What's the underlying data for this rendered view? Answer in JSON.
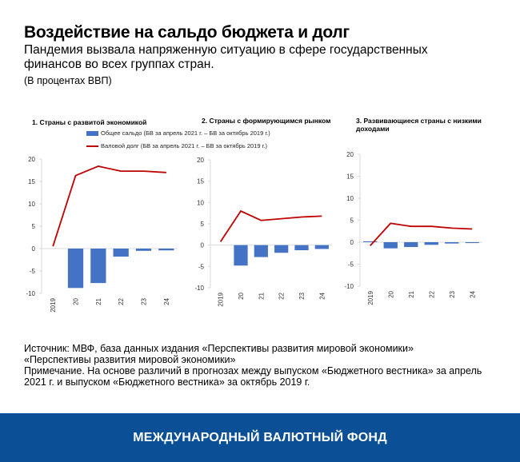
{
  "header": {
    "title": "Воздействие на сальдо бюджета и долг",
    "subtitle": "Пандемия вызвала напряженную ситуацию в сфере государственных финансов во всех группах стран.",
    "unit": "(В процентах ВВП)"
  },
  "legend": {
    "balance": "Общее сальдо (БВ за апрель 2021 г. – БВ за октябрь 2019 г.)",
    "debt": "Валовой долг (БВ за апрель 2021 г. – БВ за октябрь 2019 г.)"
  },
  "colors": {
    "balance": "#4472c4",
    "debt": "#c00000",
    "footer": "#0b4f96"
  },
  "chart_data": [
    {
      "type": "bar+line",
      "title": "1. Страны с развитой экономикой",
      "categories": [
        "2019",
        "20",
        "21",
        "22",
        "23",
        "24"
      ],
      "yticks": [
        "20",
        "15",
        "10",
        "5",
        "0",
        "-5",
        "-10"
      ],
      "ylim": [
        -10,
        20
      ],
      "series": [
        {
          "name": "Общее сальдо (БВ за апрель 2021 г. – БВ за октябрь 2019 г.)",
          "type": "bar",
          "values": [
            0,
            -8.8,
            -7.7,
            -1.8,
            -0.5,
            -0.4
          ]
        },
        {
          "name": "Валовой долг (БВ за апрель 2021 г. – БВ за октябрь 2019 г.)",
          "type": "line",
          "values": [
            0.5,
            16.3,
            18.4,
            17.3,
            17.3,
            17.0
          ]
        }
      ]
    },
    {
      "type": "bar+line",
      "title": "2. Страны с формирующимся рынком",
      "categories": [
        "2019",
        "20",
        "21",
        "22",
        "23",
        "24"
      ],
      "yticks": [
        "20",
        "15",
        "10",
        "5",
        "0",
        "-5",
        "-10"
      ],
      "ylim": [
        -10,
        20
      ],
      "series": [
        {
          "name": "Общее сальдо (БВ за апрель 2021 г. – БВ за октябрь 2019 г.)",
          "type": "bar",
          "values": [
            0,
            -4.8,
            -2.8,
            -1.8,
            -1.2,
            -0.9
          ]
        },
        {
          "name": "Валовой долг (БВ за апрель 2021 г. – БВ за октябрь 2019 г.)",
          "type": "line",
          "values": [
            0.8,
            8.0,
            5.8,
            6.2,
            6.6,
            6.8
          ]
        }
      ]
    },
    {
      "type": "bar+line",
      "title": "3. Развивающиеся страны с низкими доходами",
      "categories": [
        "2019",
        "20",
        "21",
        "22",
        "23",
        "24"
      ],
      "yticks": [
        "20",
        "15",
        "10",
        "5",
        "0",
        "-5",
        "-10"
      ],
      "ylim": [
        -10,
        20
      ],
      "series": [
        {
          "name": "Общее сальдо (БВ за апрель 2021 г. – БВ за октябрь 2019 г.)",
          "type": "bar",
          "values": [
            0.2,
            -1.4,
            -1.1,
            -0.6,
            -0.3,
            -0.2
          ]
        },
        {
          "name": "Валовой долг (БВ за апрель 2021 г. – БВ за октябрь 2019 г.)",
          "type": "line",
          "values": [
            -0.8,
            4.3,
            3.6,
            3.6,
            3.2,
            3.0
          ]
        }
      ]
    }
  ],
  "notes": {
    "source": "Источник: МВФ, база данных издания «Перспективы развития мировой экономики»",
    "source2": "«Перспективы развития мировой экономики»",
    "note": "Примечание. На основе различий в прогнозах между выпуском «Бюджетного вестника» за апрель 2021 г. и выпуском «Бюджетного вестника» за октябрь 2019 г."
  },
  "footer": {
    "org": "МЕЖДУНАРОДНЫЙ ВАЛЮТНЫЙ ФОНД"
  }
}
